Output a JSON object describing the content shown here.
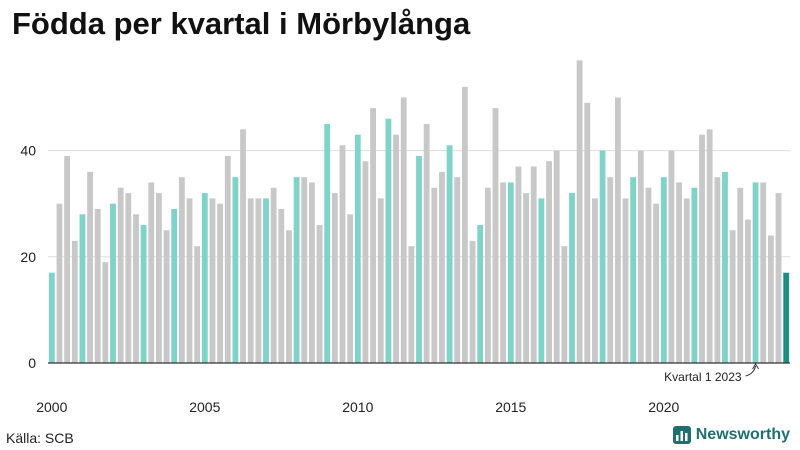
{
  "header": {
    "title": "Födda per kvartal i Mörbylånga"
  },
  "footer": {
    "source": "Källa: SCB",
    "brand": "Newsworthy"
  },
  "colors": {
    "bar_other": "#c8c8c8",
    "bar_q1": "#7fd3c8",
    "bar_latest": "#1b9080",
    "grid": "#dddddd",
    "axis": "#333333"
  },
  "chart_data": {
    "type": "bar",
    "title": "Födda per kvartal i Mörbylånga",
    "xlabel": "",
    "ylabel": "",
    "ylim": [
      0,
      58
    ],
    "yticks": [
      0,
      20,
      40
    ],
    "xticks": [
      "2000",
      "2005",
      "2010",
      "2015",
      "2020"
    ],
    "grid": true,
    "first_period": "2000 Q1",
    "periods_per_year": 4,
    "highlight_rule": "Quarter 1 bars highlighted; latest bar darkest",
    "values": [
      17,
      30,
      39,
      23,
      28,
      36,
      29,
      19,
      30,
      33,
      32,
      28,
      26,
      34,
      32,
      25,
      29,
      35,
      31,
      22,
      32,
      31,
      30,
      39,
      35,
      44,
      31,
      31,
      31,
      33,
      29,
      25,
      35,
      35,
      34,
      26,
      45,
      32,
      41,
      28,
      43,
      38,
      48,
      31,
      46,
      43,
      50,
      22,
      39,
      45,
      33,
      36,
      41,
      35,
      52,
      23,
      26,
      33,
      48,
      34,
      34,
      37,
      32,
      37,
      31,
      38,
      40,
      22,
      32,
      57,
      49,
      31,
      40,
      35,
      50,
      31,
      35,
      40,
      33,
      30,
      35,
      40,
      34,
      31,
      33,
      43,
      44,
      35,
      36,
      25,
      33,
      27,
      34,
      34,
      24,
      32,
      17
    ],
    "annotation": {
      "text": "Kvartal 1 2023",
      "target_period": "2023 Q1"
    }
  }
}
